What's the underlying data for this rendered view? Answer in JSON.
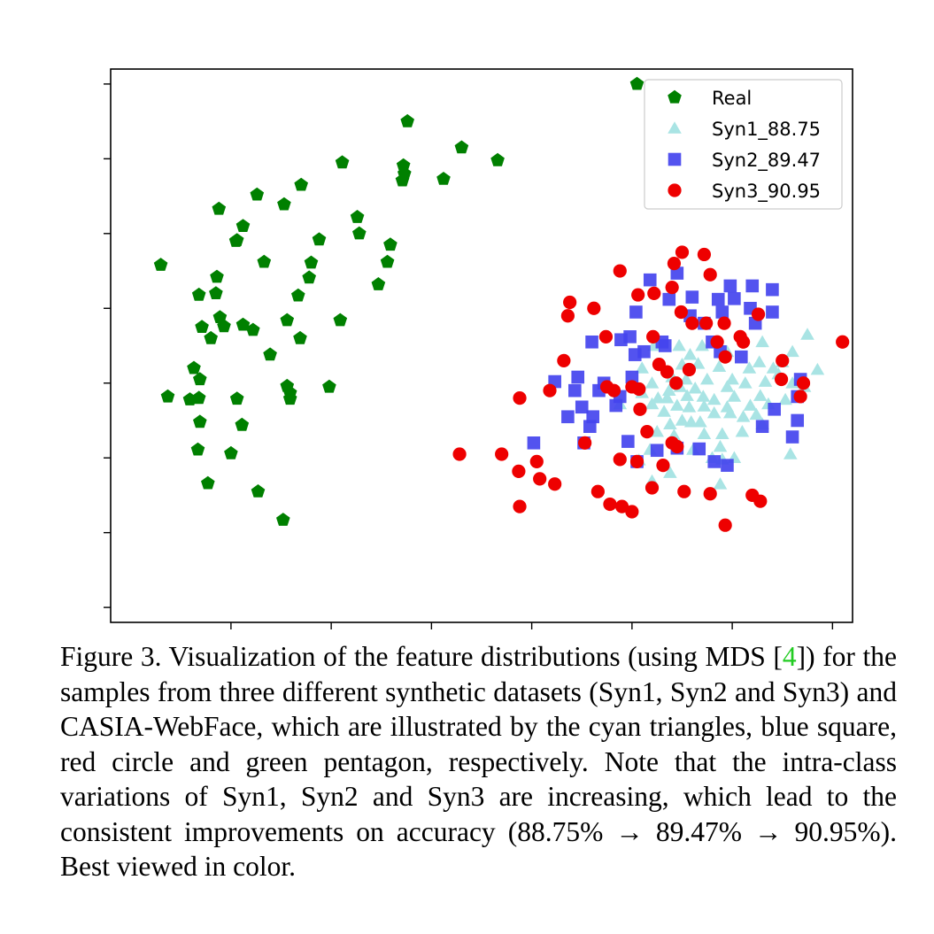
{
  "chart_data": {
    "type": "scatter",
    "title": "",
    "xlabel": "",
    "ylabel": "",
    "xlim": [
      -1.2,
      6.2
    ],
    "ylim": [
      -0.2,
      7.2
    ],
    "grid": false,
    "legend_position": "top-right",
    "series": [
      {
        "name": "Real",
        "marker": "pentagon",
        "color": "#008000",
        "points": [
          [
            4.05,
            7.0
          ],
          [
            1.76,
            6.5
          ],
          [
            2.3,
            6.15
          ],
          [
            2.66,
            5.98
          ],
          [
            1.11,
            5.95
          ],
          [
            1.72,
            5.91
          ],
          [
            1.73,
            5.8
          ],
          [
            1.71,
            5.71
          ],
          [
            2.12,
            5.73
          ],
          [
            0.7,
            5.65
          ],
          [
            0.26,
            5.52
          ],
          [
            -0.12,
            5.33
          ],
          [
            0.53,
            5.39
          ],
          [
            1.26,
            5.22
          ],
          [
            0.12,
            5.1
          ],
          [
            0.06,
            4.91
          ],
          [
            0.05,
            4.9
          ],
          [
            1.28,
            5.0
          ],
          [
            1.59,
            4.85
          ],
          [
            0.88,
            4.92
          ],
          [
            -0.7,
            4.58
          ],
          [
            0.33,
            4.62
          ],
          [
            0.8,
            4.61
          ],
          [
            1.56,
            4.62
          ],
          [
            -0.14,
            4.42
          ],
          [
            0.78,
            4.41
          ],
          [
            1.47,
            4.32
          ],
          [
            0.67,
            4.17
          ],
          [
            -0.32,
            4.18
          ],
          [
            -0.15,
            4.2
          ],
          [
            -0.11,
            3.88
          ],
          [
            0.56,
            3.84
          ],
          [
            1.09,
            3.84
          ],
          [
            -0.29,
            3.75
          ],
          [
            -0.07,
            3.76
          ],
          [
            0.12,
            3.78
          ],
          [
            0.22,
            3.71
          ],
          [
            0.69,
            3.6
          ],
          [
            -0.2,
            3.6
          ],
          [
            0.39,
            3.38
          ],
          [
            -0.37,
            3.2
          ],
          [
            -0.31,
            3.05
          ],
          [
            0.56,
            2.96
          ],
          [
            0.98,
            2.95
          ],
          [
            -0.63,
            2.82
          ],
          [
            -0.41,
            2.78
          ],
          [
            -0.32,
            2.8
          ],
          [
            0.06,
            2.79
          ],
          [
            0.59,
            2.87
          ],
          [
            0.59,
            2.79
          ],
          [
            -0.31,
            2.48
          ],
          [
            0.11,
            2.44
          ],
          [
            -0.33,
            2.11
          ],
          [
            0.0,
            2.06
          ],
          [
            -0.23,
            1.66
          ],
          [
            0.27,
            1.55
          ],
          [
            0.52,
            1.17
          ]
        ]
      },
      {
        "name": "Syn1_88.75",
        "marker": "triangle",
        "color": "#a9e4e4",
        "points": [
          [
            5.6,
            3.42
          ],
          [
            5.5,
            3.28
          ],
          [
            5.27,
            3.28
          ],
          [
            5.41,
            3.2
          ],
          [
            5.17,
            3.2
          ],
          [
            4.87,
            3.22
          ],
          [
            4.66,
            3.26
          ],
          [
            4.5,
            3.25
          ],
          [
            4.4,
            3.08
          ],
          [
            4.54,
            3.05
          ],
          [
            4.75,
            3.05
          ],
          [
            5.0,
            3.05
          ],
          [
            5.13,
            3.0
          ],
          [
            5.46,
            3.12
          ],
          [
            5.33,
            3.02
          ],
          [
            5.6,
            3.0
          ],
          [
            5.72,
            2.95
          ],
          [
            4.95,
            2.95
          ],
          [
            4.63,
            2.93
          ],
          [
            4.48,
            2.95
          ],
          [
            4.37,
            2.9
          ],
          [
            4.2,
            3.0
          ],
          [
            4.1,
            2.87
          ],
          [
            4.26,
            2.8
          ],
          [
            4.35,
            2.8
          ],
          [
            4.55,
            2.83
          ],
          [
            4.71,
            2.82
          ],
          [
            4.82,
            2.78
          ],
          [
            5.02,
            2.82
          ],
          [
            5.28,
            2.83
          ],
          [
            5.53,
            2.78
          ],
          [
            4.45,
            2.7
          ],
          [
            4.57,
            2.68
          ],
          [
            4.72,
            2.69
          ],
          [
            4.95,
            2.68
          ],
          [
            5.18,
            2.7
          ],
          [
            5.36,
            2.72
          ],
          [
            3.88,
            2.72
          ],
          [
            4.2,
            2.72
          ],
          [
            4.32,
            2.62
          ],
          [
            4.5,
            2.5
          ],
          [
            4.68,
            2.48
          ],
          [
            4.82,
            2.6
          ],
          [
            4.98,
            2.6
          ],
          [
            5.11,
            2.55
          ],
          [
            5.24,
            2.58
          ],
          [
            4.38,
            2.45
          ],
          [
            4.59,
            2.48
          ],
          [
            4.25,
            2.35
          ],
          [
            4.42,
            2.3
          ],
          [
            4.72,
            2.32
          ],
          [
            4.9,
            2.32
          ],
          [
            5.1,
            2.35
          ],
          [
            5.3,
            2.45
          ],
          [
            4.88,
            2.15
          ],
          [
            4.9,
            1.98
          ],
          [
            4.07,
            1.97
          ],
          [
            5.02,
            2.0
          ],
          [
            4.8,
            2.0
          ],
          [
            4.61,
            2.11
          ],
          [
            4.18,
            2.11
          ],
          [
            4.38,
            1.8
          ],
          [
            4.2,
            1.69
          ],
          [
            4.88,
            1.65
          ],
          [
            5.58,
            2.05
          ],
          [
            5.75,
            3.65
          ],
          [
            5.85,
            3.18
          ],
          [
            4.22,
            3.5
          ],
          [
            4.47,
            3.5
          ],
          [
            4.58,
            3.38
          ],
          [
            4.1,
            3.2
          ],
          [
            4.95,
            3.42
          ],
          [
            4.7,
            3.5
          ],
          [
            5.3,
            3.55
          ]
        ]
      },
      {
        "name": "Syn2_89.47",
        "marker": "square",
        "color": "#4444ee",
        "points": [
          [
            4.45,
            4.47
          ],
          [
            4.18,
            4.38
          ],
          [
            4.98,
            4.3
          ],
          [
            5.2,
            4.3
          ],
          [
            5.4,
            4.25
          ],
          [
            4.6,
            4.15
          ],
          [
            4.37,
            4.12
          ],
          [
            4.86,
            4.12
          ],
          [
            5.02,
            4.13
          ],
          [
            5.18,
            4.0
          ],
          [
            4.9,
            3.95
          ],
          [
            4.04,
            3.95
          ],
          [
            5.4,
            3.95
          ],
          [
            4.58,
            3.9
          ],
          [
            4.72,
            3.8
          ],
          [
            5.23,
            3.8
          ],
          [
            4.8,
            3.55
          ],
          [
            4.33,
            3.5
          ],
          [
            3.89,
            3.58
          ],
          [
            3.98,
            3.62
          ],
          [
            4.12,
            3.42
          ],
          [
            4.03,
            3.38
          ],
          [
            5.09,
            3.35
          ],
          [
            4.88,
            3.42
          ],
          [
            4.3,
            3.55
          ],
          [
            3.6,
            3.55
          ],
          [
            4.0,
            3.08
          ],
          [
            3.72,
            3.0
          ],
          [
            3.46,
            3.08
          ],
          [
            3.23,
            3.02
          ],
          [
            3.43,
            2.9
          ],
          [
            3.67,
            2.9
          ],
          [
            3.88,
            2.82
          ],
          [
            5.68,
            3.05
          ],
          [
            5.42,
            2.65
          ],
          [
            5.65,
            2.82
          ],
          [
            3.5,
            2.68
          ],
          [
            3.84,
            2.7
          ],
          [
            3.36,
            2.55
          ],
          [
            3.61,
            2.55
          ],
          [
            3.58,
            2.42
          ],
          [
            3.52,
            2.2
          ],
          [
            5.3,
            2.42
          ],
          [
            5.65,
            2.5
          ],
          [
            5.6,
            2.28
          ],
          [
            3.02,
            2.2
          ],
          [
            3.96,
            2.22
          ],
          [
            4.25,
            2.1
          ],
          [
            4.45,
            2.13
          ],
          [
            4.67,
            2.12
          ],
          [
            4.82,
            1.95
          ],
          [
            4.05,
            1.95
          ],
          [
            4.95,
            1.9
          ]
        ]
      },
      {
        "name": "Syn3_90.95",
        "marker": "circle",
        "color": "#ee0000",
        "points": [
          [
            4.5,
            4.75
          ],
          [
            4.42,
            4.6
          ],
          [
            4.72,
            4.72
          ],
          [
            4.78,
            4.45
          ],
          [
            3.88,
            4.5
          ],
          [
            3.38,
            4.08
          ],
          [
            3.62,
            4.0
          ],
          [
            4.4,
            4.28
          ],
          [
            3.74,
            3.62
          ],
          [
            3.36,
            3.9
          ],
          [
            4.22,
            4.2
          ],
          [
            4.06,
            4.18
          ],
          [
            4.49,
            3.95
          ],
          [
            4.74,
            3.8
          ],
          [
            5.26,
            3.92
          ],
          [
            4.92,
            3.8
          ],
          [
            4.21,
            3.62
          ],
          [
            4.85,
            3.55
          ],
          [
            4.6,
            3.8
          ],
          [
            5.08,
            3.62
          ],
          [
            5.11,
            3.55
          ],
          [
            6.1,
            3.55
          ],
          [
            4.93,
            3.35
          ],
          [
            5.5,
            3.3
          ],
          [
            5.49,
            3.05
          ],
          [
            4.27,
            3.25
          ],
          [
            5.71,
            3.0
          ],
          [
            3.32,
            3.3
          ],
          [
            4.35,
            3.15
          ],
          [
            4.57,
            3.18
          ],
          [
            4.44,
            3.0
          ],
          [
            3.18,
            2.9
          ],
          [
            3.75,
            2.95
          ],
          [
            3.82,
            2.9
          ],
          [
            2.88,
            2.8
          ],
          [
            4.0,
            2.95
          ],
          [
            4.07,
            2.92
          ],
          [
            5.68,
            2.82
          ],
          [
            4.08,
            2.65
          ],
          [
            4.15,
            2.35
          ],
          [
            4.4,
            2.2
          ],
          [
            3.53,
            2.2
          ],
          [
            3.05,
            1.95
          ],
          [
            4.05,
            1.95
          ],
          [
            3.88,
            1.98
          ],
          [
            4.31,
            1.9
          ],
          [
            4.2,
            1.6
          ],
          [
            2.28,
            2.05
          ],
          [
            2.7,
            2.05
          ],
          [
            2.87,
            1.82
          ],
          [
            3.08,
            1.72
          ],
          [
            3.23,
            1.65
          ],
          [
            3.66,
            1.55
          ],
          [
            4.52,
            1.55
          ],
          [
            5.2,
            1.5
          ],
          [
            4.78,
            1.52
          ],
          [
            2.88,
            1.35
          ],
          [
            3.9,
            1.35
          ],
          [
            3.78,
            1.38
          ],
          [
            5.28,
            1.42
          ],
          [
            4.0,
            1.28
          ],
          [
            4.93,
            1.1
          ],
          [
            4.45,
            2.15
          ]
        ]
      }
    ]
  },
  "caption": {
    "lead": "Figure 3. Visualization of the feature distributions (using MDS [",
    "ref": "4",
    "rest": "]) for the samples from three different synthetic datasets (Syn1, Syn2 and Syn3) and CASIA-WebFace, which are illustrated by the cyan triangles, blue square, red circle and green pentagon, respectively. Note that the intra-class variations of Syn1, Syn2 and Syn3 are increasing, which lead to the consistent improvements on accuracy (88.75% → 89.47% → 90.95%). Best viewed in color."
  }
}
